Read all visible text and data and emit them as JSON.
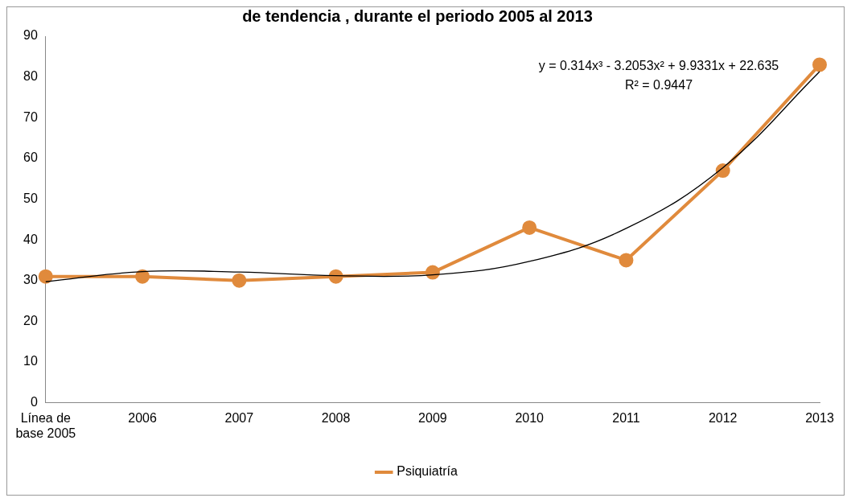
{
  "chart_data": {
    "type": "line",
    "title": "de tendencia , durante el periodo 2005 al 2013",
    "categories": [
      "Línea de\nbase 2005",
      "2006",
      "2007",
      "2008",
      "2009",
      "2010",
      "2011",
      "2012",
      "2013"
    ],
    "series": [
      {
        "name": "Psiquiatría",
        "color": "#e08a3c",
        "values": [
          31,
          31,
          30,
          31,
          32,
          43,
          35,
          57,
          83
        ],
        "marker": "circle"
      },
      {
        "type": "line",
        "color": "#000000",
        "values": [
          29.7,
          32.2,
          32.1,
          31.2,
          31.4,
          34.7,
          42.8,
          57.7,
          81.3
        ],
        "marker": "none"
      }
    ],
    "ylim": [
      0,
      90
    ],
    "yticks": [
      0,
      10,
      20,
      30,
      40,
      50,
      60,
      70,
      80,
      90
    ],
    "grid": false,
    "legend": "bottom",
    "annotations": [
      "y = 0.314x³ - 3.2053x² + 9.9331x + 22.635",
      "R² = 0.9447"
    ]
  }
}
